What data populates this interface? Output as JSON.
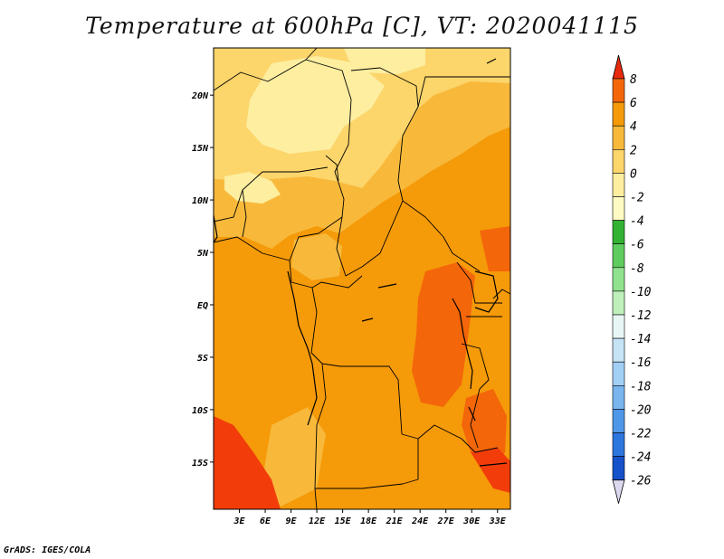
{
  "title": "Temperature at 600hPa [C], VT: 2020041115",
  "credit": "GrADS: IGES/COLA",
  "map": {
    "lon_range": [
      0,
      34.5
    ],
    "lat_range": [
      -19.5,
      24.5
    ],
    "lon_ticks": [
      {
        "value": 3,
        "label": "3E"
      },
      {
        "value": 6,
        "label": "6E"
      },
      {
        "value": 9,
        "label": "9E"
      },
      {
        "value": 12,
        "label": "12E"
      },
      {
        "value": 15,
        "label": "15E"
      },
      {
        "value": 18,
        "label": "18E"
      },
      {
        "value": 21,
        "label": "21E"
      },
      {
        "value": 24,
        "label": "24E"
      },
      {
        "value": 27,
        "label": "27E"
      },
      {
        "value": 30,
        "label": "30E"
      },
      {
        "value": 33,
        "label": "33E"
      }
    ],
    "lat_ticks": [
      {
        "value": 20,
        "label": "20N"
      },
      {
        "value": 15,
        "label": "15N"
      },
      {
        "value": 10,
        "label": "10N"
      },
      {
        "value": 5,
        "label": "5N"
      },
      {
        "value": 0,
        "label": "EQ"
      },
      {
        "value": -5,
        "label": "5S"
      },
      {
        "value": -10,
        "label": "10S"
      },
      {
        "value": -15,
        "label": "15S"
      }
    ]
  },
  "colorbar": {
    "labels": [
      "8",
      "6",
      "4",
      "2",
      "0",
      "-2",
      "-4",
      "-6",
      "-8",
      "-10",
      "-12",
      "-14",
      "-16",
      "-18",
      "-20",
      "-22",
      "-24",
      "-26"
    ],
    "top_arrow_color": "#e8290e",
    "bottom_arrow_color": "#dcd8f0",
    "segment_colors": [
      "#f23d0b",
      "#f4660a",
      "#f59a09",
      "#f8b93b",
      "#fcd56b",
      "#fdeea0",
      "#fffbc4",
      "#33b233",
      "#5fcc5f",
      "#90e28e",
      "#bff0bc",
      "#e8f7f6",
      "#c6e3f6",
      "#a2cff4",
      "#7ab5ee",
      "#4f97e8",
      "#2d76de",
      "#1551c8",
      "#0a2f9e"
    ]
  },
  "field_colors": {
    "c_m2_0": "#fdeea0",
    "c_0_2": "#fcd56b",
    "c_2_4": "#f8b93b",
    "c_4_6": "#f59a09",
    "c_6_8": "#f4660a",
    "c_8_up": "#f23d0b"
  }
}
